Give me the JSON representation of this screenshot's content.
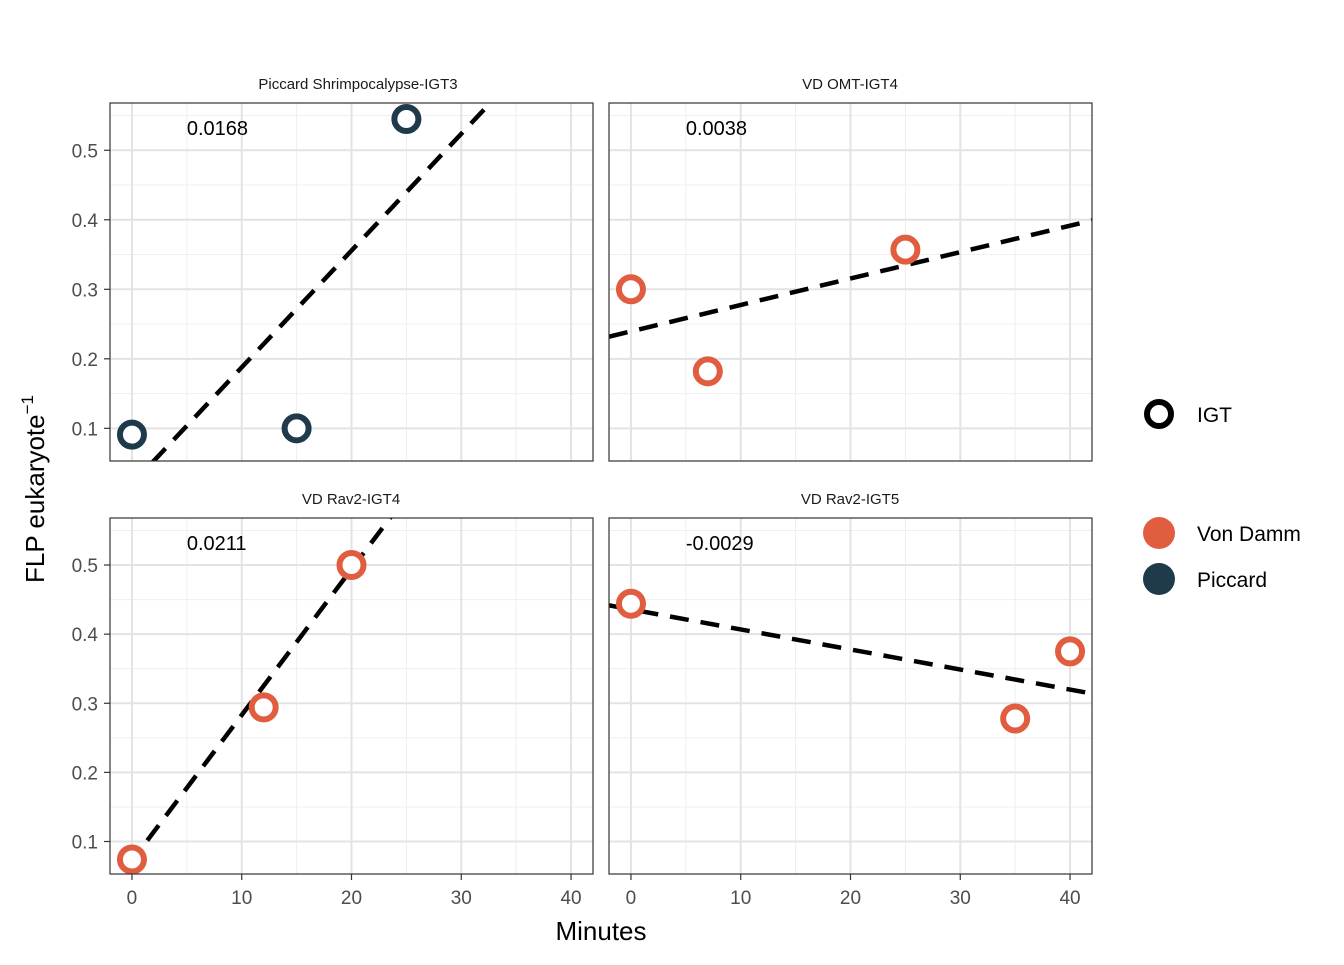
{
  "chart_data": {
    "type": "scatter",
    "xlabel": "Minutes",
    "ylabel": "FLP eukaryote",
    "ylabel_superscript": "−1",
    "xlim": [
      -2,
      42
    ],
    "ylim": [
      0.053,
      0.568
    ],
    "x_ticks": [
      0,
      10,
      20,
      30,
      40
    ],
    "y_ticks": [
      0.1,
      0.2,
      0.3,
      0.4,
      0.5
    ],
    "x_tick_labels": [
      "0",
      "10",
      "20",
      "30",
      "40"
    ],
    "y_tick_labels": [
      "0.1",
      "0.2",
      "0.3",
      "0.4",
      "0.5"
    ],
    "grid": true,
    "legend_placement": "right",
    "legend": {
      "shape_entries": [
        {
          "label": "IGT",
          "shape": "open-circle"
        }
      ],
      "color_entries": [
        {
          "label": "Von Damm",
          "color": "#E05D40"
        },
        {
          "label": "Piccard",
          "color": "#1F3A4A"
        }
      ]
    },
    "colors": {
      "Von Damm": "#E05D40",
      "Piccard": "#1F3A4A",
      "trendline": "#000000"
    },
    "panels": [
      {
        "title": "Piccard Shrimpocalypse-IGT3",
        "slope_label": "0.0168",
        "site": "Piccard",
        "points": [
          {
            "x": 0,
            "y": 0.091
          },
          {
            "x": 15,
            "y": 0.1
          },
          {
            "x": 25,
            "y": 0.545
          }
        ],
        "fit": {
          "slope": 0.0168,
          "intercept": 0.0197
        }
      },
      {
        "title": "VD OMT-IGT4",
        "slope_label": "0.0038",
        "site": "Von Damm",
        "points": [
          {
            "x": 0,
            "y": 0.3
          },
          {
            "x": 7,
            "y": 0.182
          },
          {
            "x": 25,
            "y": 0.357
          }
        ],
        "fit": {
          "slope": 0.0038,
          "intercept": 0.2395
        }
      },
      {
        "title": "VD Rav2-IGT4",
        "slope_label": "0.0211",
        "site": "Von Damm",
        "points": [
          {
            "x": 0,
            "y": 0.074
          },
          {
            "x": 12,
            "y": 0.294
          },
          {
            "x": 20,
            "y": 0.5
          }
        ],
        "fit": {
          "slope": 0.0211,
          "intercept": 0.072
        }
      },
      {
        "title": "VD Rav2-IGT5",
        "slope_label": "-0.0029",
        "site": "Von Damm",
        "points": [
          {
            "x": 0,
            "y": 0.444
          },
          {
            "x": 35,
            "y": 0.278
          },
          {
            "x": 40,
            "y": 0.375
          }
        ],
        "fit": {
          "slope": -0.0029,
          "intercept": 0.4358
        }
      }
    ]
  }
}
